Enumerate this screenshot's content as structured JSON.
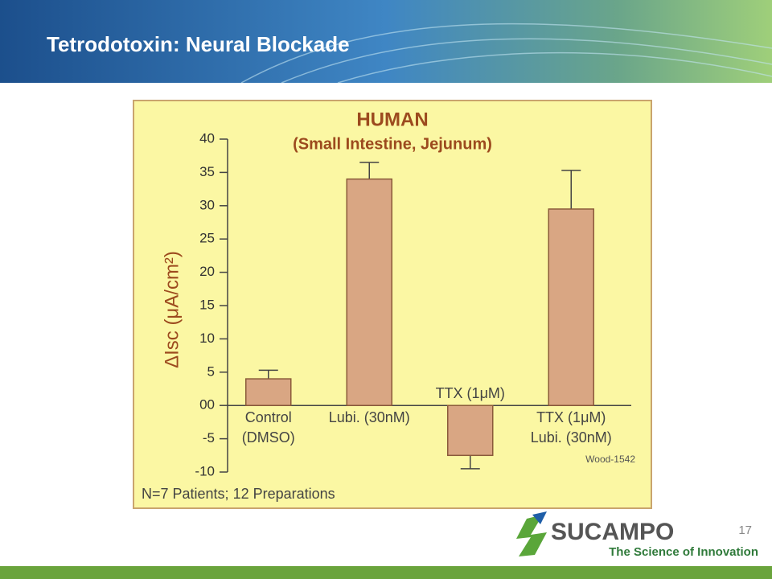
{
  "header": {
    "title": "Tetrodotoxin: Neural Blockade"
  },
  "chart_data": {
    "type": "bar",
    "title": "HUMAN",
    "subtitle": "(Small Intestine, Jejunum)",
    "y_label": "ΔIsc (μA/cm²)",
    "categories": [
      [
        "Control",
        "(DMSO)"
      ],
      [
        "Lubi. (30nM)"
      ],
      [
        "TTX (1μM)"
      ],
      [
        "TTX (1μM)",
        "Lubi. (30nM)"
      ]
    ],
    "values": [
      4.0,
      34.0,
      -7.5,
      29.5
    ],
    "errors": [
      1.3,
      2.5,
      2.0,
      5.8
    ],
    "color": "#d9a683",
    "ylim": [
      -10,
      40
    ],
    "yticks": [
      40,
      35,
      30,
      25,
      20,
      15,
      10,
      5,
      {
        "value": 0,
        "label": "00"
      },
      -5,
      -10
    ],
    "note": "Wood-1542",
    "footnote": "N=7 Patients; 12 Preparations"
  },
  "page_number": "17",
  "logo": {
    "name": "SUCAMPO",
    "tagline": "The Science of Innovation"
  }
}
